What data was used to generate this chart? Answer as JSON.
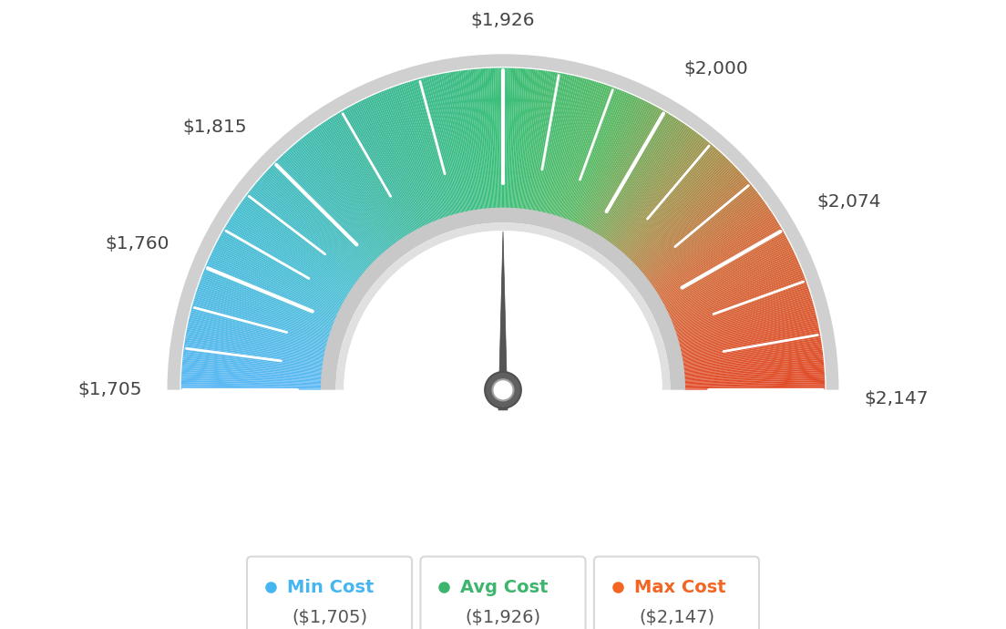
{
  "min_val": 1705,
  "avg_val": 1926,
  "max_val": 2147,
  "tick_labels": [
    "$1,705",
    "$1,760",
    "$1,815",
    "$1,926",
    "$2,000",
    "$2,074",
    "$2,147"
  ],
  "tick_values": [
    1705,
    1760,
    1815,
    1926,
    2000,
    2074,
    2147
  ],
  "legend_labels": [
    "Min Cost",
    "Avg Cost",
    "Max Cost"
  ],
  "legend_values": [
    "($1,705)",
    "($1,926)",
    "($2,147)"
  ],
  "legend_colors": [
    "#45b6f0",
    "#3db56e",
    "#f26522"
  ],
  "background_color": "#ffffff",
  "needle_value": 1926,
  "color_stops": [
    [
      0.0,
      [
        91,
        184,
        245
      ]
    ],
    [
      0.18,
      [
        72,
        190,
        210
      ]
    ],
    [
      0.35,
      [
        62,
        185,
        155
      ]
    ],
    [
      0.5,
      [
        58,
        190,
        120
      ]
    ],
    [
      0.62,
      [
        88,
        185,
        100
      ]
    ],
    [
      0.72,
      [
        160,
        150,
        80
      ]
    ],
    [
      0.82,
      [
        210,
        110,
        60
      ]
    ],
    [
      1.0,
      [
        225,
        75,
        40
      ]
    ]
  ]
}
